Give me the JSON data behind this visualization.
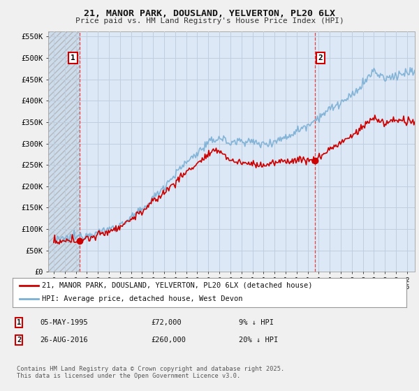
{
  "title1": "21, MANOR PARK, DOUSLAND, YELVERTON, PL20 6LX",
  "title2": "Price paid vs. HM Land Registry's House Price Index (HPI)",
  "background_color": "#f0f0f0",
  "plot_bg_color": "#dce8f5",
  "hatch_region_end": 1995.35,
  "sale1_date_num": 1995.35,
  "sale1_price": 72000,
  "sale2_date_num": 2016.65,
  "sale2_price": 260000,
  "legend_line1": "21, MANOR PARK, DOUSLAND, YELVERTON, PL20 6LX (detached house)",
  "legend_line2": "HPI: Average price, detached house, West Devon",
  "footer": "Contains HM Land Registry data © Crown copyright and database right 2025.\nThis data is licensed under the Open Government Licence v3.0.",
  "xlim_start": 1992.5,
  "xlim_end": 2025.7,
  "ylim_bottom": 0,
  "ylim_top": 562500,
  "red_line_color": "#cc0000",
  "blue_line_color": "#7bafd4",
  "sale_marker_color": "#cc0000",
  "grid_color": "#c0cfe0",
  "vline_color": "#dd3333"
}
